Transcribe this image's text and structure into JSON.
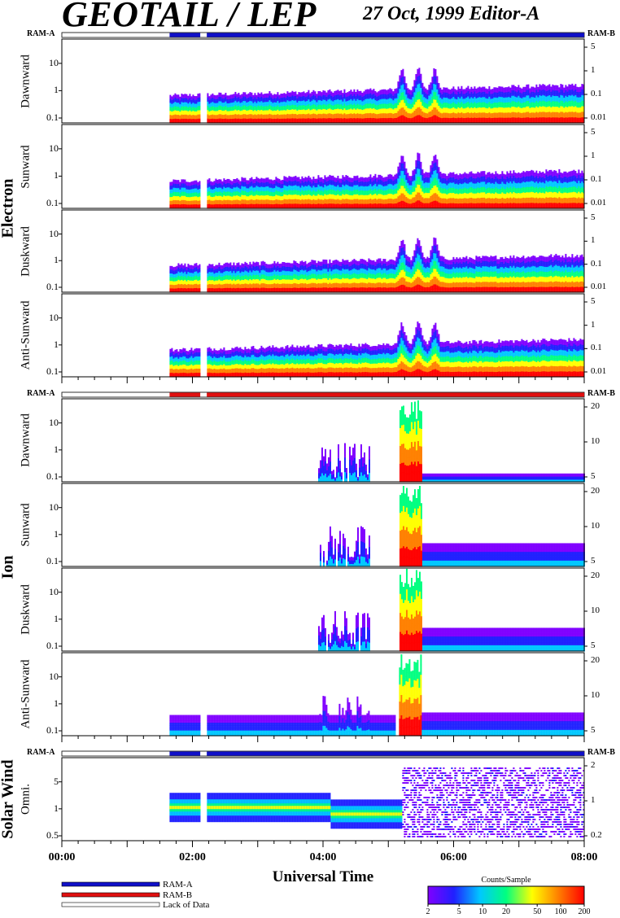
{
  "header": {
    "title": "GEOTAIL / LEP",
    "date": "27 Oct, 1999   Editor-A"
  },
  "ram_labels": {
    "left": "RAM-A",
    "right": "RAM-B"
  },
  "groups": [
    {
      "name": "Electron",
      "panels": [
        "Dawnward",
        "Sunward",
        "Duskward",
        "Anti-Sunward"
      ]
    },
    {
      "name": "Ion",
      "panels": [
        "Dawnward",
        "Sunward",
        "Duskward",
        "Anti-Sunward"
      ]
    },
    {
      "name": "Solar Wind",
      "panels": [
        "Omni."
      ]
    }
  ],
  "legend": {
    "ram_a": "RAM-A",
    "ram_b": "RAM-B",
    "lack": "Lack of Data"
  },
  "colorbar": {
    "title": "Counts/Sample",
    "ticks": [
      "2",
      "5",
      "10",
      "20",
      "50",
      "100",
      "200"
    ]
  },
  "colors": {
    "ram_a": "#1010c8",
    "ram_b": "#e01010",
    "palette": [
      "#8000ff",
      "#2020ff",
      "#00c8ff",
      "#00ff80",
      "#ffff00",
      "#ff8000",
      "#ff0000"
    ]
  },
  "chart_data": [
    {
      "type": "heatmap",
      "title": "GEOTAIL / LEP",
      "subtitle": "27 Oct, 1999   Editor-A",
      "xlabel": "Universal Time",
      "x_ticks": [
        "00:00",
        "02:00",
        "04:00",
        "06:00",
        "08:00"
      ],
      "x_range_hours": [
        0,
        8
      ],
      "colorbar": {
        "label": "Counts/Sample",
        "range": [
          2,
          200
        ],
        "scale": "log"
      },
      "series": [
        {
          "group": "Electron",
          "name": "Dawnward",
          "y_ticks_left": [
            "0.1",
            "1",
            "10"
          ],
          "y_ticks_right": [
            "0.01",
            "0.1",
            "1",
            "5"
          ],
          "data_start_hour": 1.65,
          "activity_peaks_hour": [
            5.2,
            5.45,
            5.7
          ]
        },
        {
          "group": "Electron",
          "name": "Sunward",
          "y_ticks_left": [
            "0.1",
            "1",
            "10"
          ],
          "y_ticks_right": [
            "0.01",
            "0.1",
            "1",
            "5"
          ],
          "data_start_hour": 1.65,
          "activity_peaks_hour": [
            5.2,
            5.45,
            5.7
          ]
        },
        {
          "group": "Electron",
          "name": "Duskward",
          "y_ticks_left": [
            "0.1",
            "1",
            "10"
          ],
          "y_ticks_right": [
            "0.01",
            "0.1",
            "1",
            "5"
          ],
          "data_start_hour": 1.65,
          "activity_peaks_hour": [
            5.2,
            5.45,
            5.7
          ]
        },
        {
          "group": "Electron",
          "name": "Anti-Sunward",
          "y_ticks_left": [
            "0.1",
            "1",
            "10"
          ],
          "y_ticks_right": [
            "0.01",
            "0.1",
            "1",
            "5"
          ],
          "data_start_hour": 1.65,
          "activity_peaks_hour": [
            5.2,
            5.45,
            5.7
          ]
        },
        {
          "group": "Ion",
          "name": "Dawnward",
          "y_ticks_left": [
            "0.1",
            "1",
            "10"
          ],
          "y_ticks_right": [
            "5",
            "10",
            "20"
          ],
          "activity_peaks_hour": [
            4.0,
            5.2,
            5.45
          ]
        },
        {
          "group": "Ion",
          "name": "Sunward",
          "y_ticks_left": [
            "0.1",
            "1",
            "10"
          ],
          "y_ticks_right": [
            "5",
            "10",
            "20"
          ],
          "activity_peaks_hour": [
            4.0,
            5.2,
            5.45
          ]
        },
        {
          "group": "Ion",
          "name": "Duskward",
          "y_ticks_left": [
            "0.1",
            "1",
            "10"
          ],
          "y_ticks_right": [
            "5",
            "10",
            "20"
          ],
          "activity_peaks_hour": [
            4.0,
            5.2,
            5.45
          ]
        },
        {
          "group": "Ion",
          "name": "Anti-Sunward",
          "y_ticks_left": [
            "0.1",
            "1",
            "10"
          ],
          "y_ticks_right": [
            "5",
            "10",
            "20"
          ],
          "data_start_hour": 1.65,
          "activity_peaks_hour": [
            4.0,
            5.2,
            5.45
          ]
        },
        {
          "group": "Solar Wind",
          "name": "Omni.",
          "y_ticks_left": [
            "0.5",
            "1",
            "5"
          ],
          "y_ticks_right": [
            "0.2",
            "1",
            "2"
          ],
          "data_start_hour": 1.65,
          "transition_hour": 5.2
        }
      ],
      "data_gaps_hour": [
        [
          2.1,
          2.2
        ]
      ],
      "mode_bar": {
        "electron": "RAM-A",
        "ion": "RAM-B",
        "solar_wind": "RAM-A",
        "start_hour": 1.65
      }
    }
  ]
}
